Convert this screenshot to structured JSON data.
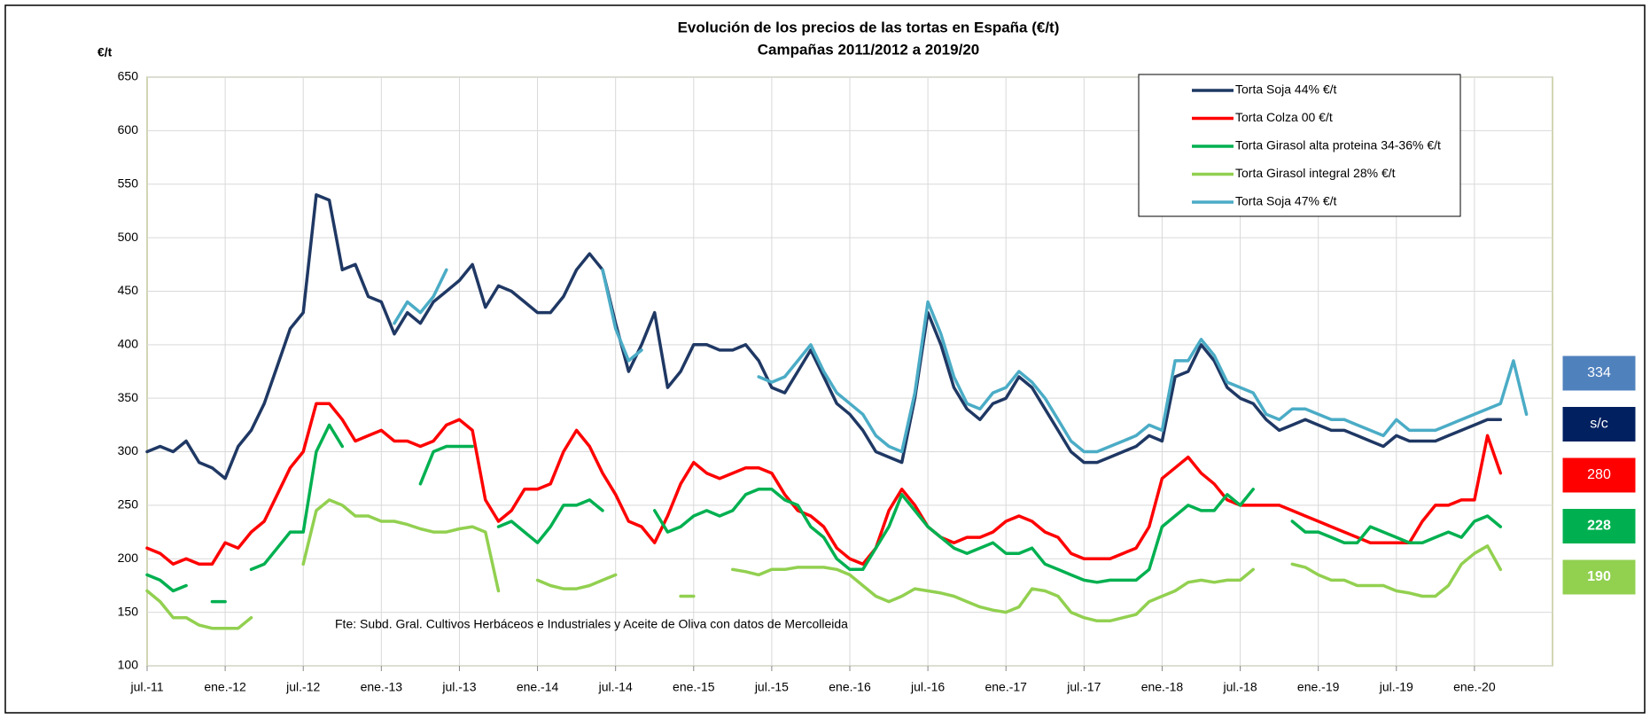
{
  "chart_data": {
    "type": "line",
    "title": "Evolución de los precios de las tortas  en España (€/t)",
    "subtitle": "Campañas 2011/2012 a 2019/20",
    "y_label": "€/t",
    "source": "Fte: Subd. Gral. Cultivos Herbáceos e Industriales y Aceite de Oliva con datos de Mercolleida",
    "categories": [
      "jul.-11",
      null,
      null,
      null,
      null,
      null,
      "ene.-12",
      null,
      null,
      null,
      null,
      null,
      "jul.-12",
      null,
      null,
      null,
      null,
      null,
      "ene.-13",
      null,
      null,
      null,
      null,
      null,
      "jul.-13",
      null,
      null,
      null,
      null,
      null,
      "ene.-14",
      null,
      null,
      null,
      null,
      null,
      "jul.-14",
      null,
      null,
      null,
      null,
      null,
      "ene.-15",
      null,
      null,
      null,
      null,
      null,
      "jul.-15",
      null,
      null,
      null,
      null,
      null,
      "ene.-16",
      null,
      null,
      null,
      null,
      null,
      "jul.-16",
      null,
      null,
      null,
      null,
      null,
      "ene.-17",
      null,
      null,
      null,
      null,
      null,
      "jul.-17",
      null,
      null,
      null,
      null,
      null,
      "ene.-18",
      null,
      null,
      null,
      null,
      null,
      "jul.-18",
      null,
      null,
      null,
      null,
      null,
      "ene.-19",
      null,
      null,
      null,
      null,
      null,
      "jul.-19",
      null,
      null,
      null,
      null,
      null,
      "ene.-20",
      null,
      null,
      null,
      null,
      null
    ],
    "ylim": [
      100,
      650
    ],
    "yticks": [
      100,
      150,
      200,
      250,
      300,
      350,
      400,
      450,
      500,
      550,
      600,
      650
    ],
    "grid": true,
    "series": [
      {
        "name": "Torta Soja  44% €/t",
        "color": "#1f3864",
        "values": [
          300,
          305,
          300,
          310,
          290,
          285,
          275,
          305,
          320,
          345,
          380,
          415,
          430,
          540,
          535,
          470,
          475,
          445,
          440,
          410,
          430,
          420,
          440,
          450,
          460,
          475,
          435,
          455,
          450,
          440,
          430,
          430,
          445,
          470,
          485,
          470,
          420,
          375,
          400,
          430,
          360,
          375,
          400,
          400,
          395,
          395,
          400,
          385,
          360,
          355,
          375,
          395,
          370,
          345,
          335,
          320,
          300,
          295,
          290,
          350,
          430,
          400,
          360,
          340,
          330,
          345,
          350,
          370,
          360,
          340,
          320,
          300,
          290,
          290,
          295,
          300,
          305,
          315,
          310,
          370,
          375,
          400,
          385,
          360,
          350,
          345,
          330,
          320,
          325,
          330,
          325,
          320,
          320,
          315,
          310,
          305,
          315,
          310,
          310,
          310,
          315,
          320,
          325,
          330,
          330,
          null,
          null,
          null
        ]
      },
      {
        "name": "Torta Colza 00 €/t",
        "color": "#ff0000",
        "values": [
          210,
          205,
          195,
          200,
          195,
          195,
          215,
          210,
          225,
          235,
          260,
          285,
          300,
          345,
          345,
          330,
          310,
          315,
          320,
          310,
          310,
          305,
          310,
          325,
          330,
          320,
          255,
          235,
          245,
          265,
          265,
          270,
          300,
          320,
          305,
          280,
          260,
          235,
          230,
          215,
          240,
          270,
          290,
          280,
          275,
          280,
          285,
          285,
          280,
          260,
          245,
          240,
          230,
          210,
          200,
          195,
          210,
          245,
          265,
          250,
          230,
          220,
          215,
          220,
          220,
          225,
          235,
          240,
          235,
          225,
          220,
          205,
          200,
          200,
          200,
          205,
          210,
          230,
          275,
          285,
          295,
          280,
          270,
          255,
          250,
          250,
          250,
          250,
          245,
          240,
          235,
          230,
          225,
          220,
          215,
          215,
          215,
          215,
          235,
          250,
          250,
          255,
          255,
          315,
          280,
          null,
          null,
          null
        ]
      },
      {
        "name": "Torta Girasol alta proteina 34-36% €/t",
        "color": "#00b050",
        "values": [
          185,
          180,
          170,
          175,
          null,
          160,
          160,
          null,
          190,
          195,
          210,
          225,
          225,
          300,
          325,
          305,
          null,
          null,
          null,
          null,
          null,
          270,
          300,
          305,
          305,
          305,
          null,
          230,
          235,
          225,
          215,
          230,
          250,
          250,
          255,
          245,
          null,
          null,
          null,
          245,
          225,
          230,
          240,
          245,
          240,
          245,
          260,
          265,
          265,
          255,
          250,
          230,
          220,
          200,
          190,
          190,
          210,
          230,
          260,
          245,
          230,
          220,
          210,
          205,
          210,
          215,
          205,
          205,
          210,
          195,
          190,
          185,
          180,
          178,
          180,
          180,
          180,
          190,
          230,
          240,
          250,
          245,
          245,
          260,
          250,
          265,
          null,
          null,
          235,
          225,
          225,
          220,
          215,
          215,
          230,
          225,
          220,
          215,
          215,
          220,
          225,
          220,
          235,
          240,
          230,
          null,
          null,
          null
        ]
      },
      {
        "name": "Torta Girasol integral 28% €/t",
        "color": "#92d050",
        "values": [
          170,
          160,
          145,
          145,
          138,
          135,
          135,
          135,
          145,
          null,
          null,
          null,
          195,
          245,
          255,
          250,
          240,
          240,
          235,
          235,
          232,
          228,
          225,
          225,
          228,
          230,
          225,
          170,
          null,
          null,
          180,
          175,
          172,
          172,
          175,
          180,
          185,
          null,
          null,
          null,
          null,
          165,
          165,
          null,
          null,
          190,
          188,
          185,
          190,
          190,
          192,
          192,
          192,
          190,
          185,
          175,
          165,
          160,
          165,
          172,
          170,
          168,
          165,
          160,
          155,
          152,
          150,
          155,
          172,
          170,
          165,
          150,
          145,
          142,
          142,
          145,
          148,
          160,
          165,
          170,
          178,
          180,
          178,
          180,
          180,
          190,
          null,
          null,
          195,
          192,
          185,
          180,
          180,
          175,
          175,
          175,
          170,
          168,
          165,
          165,
          175,
          195,
          205,
          212,
          190,
          null,
          null,
          null
        ]
      },
      {
        "name": "Torta Soja  47% €/t",
        "color": "#4bacc6",
        "values": [
          null,
          null,
          null,
          null,
          null,
          null,
          null,
          null,
          null,
          null,
          null,
          null,
          null,
          null,
          null,
          null,
          null,
          null,
          null,
          420,
          440,
          430,
          445,
          470,
          null,
          null,
          null,
          null,
          null,
          null,
          null,
          null,
          null,
          null,
          null,
          470,
          415,
          385,
          395,
          null,
          null,
          null,
          null,
          null,
          null,
          null,
          null,
          370,
          365,
          370,
          385,
          400,
          375,
          355,
          345,
          335,
          315,
          305,
          300,
          355,
          440,
          410,
          370,
          345,
          340,
          355,
          360,
          375,
          365,
          350,
          330,
          310,
          300,
          300,
          305,
          310,
          315,
          325,
          320,
          385,
          385,
          405,
          390,
          365,
          360,
          355,
          335,
          330,
          340,
          340,
          335,
          330,
          330,
          325,
          320,
          315,
          330,
          320,
          320,
          320,
          325,
          330,
          335,
          340,
          345,
          385,
          335,
          null
        ]
      }
    ],
    "side_labels": [
      {
        "label": "334",
        "color": "#4f81bd",
        "bold": false
      },
      {
        "label": "s/c",
        "color": "#002060",
        "bold": false
      },
      {
        "label": "280",
        "color": "#ff0000",
        "bold": false
      },
      {
        "label": "228",
        "color": "#00b050",
        "bold": true
      },
      {
        "label": "190",
        "color": "#92d050",
        "bold": true
      }
    ]
  }
}
